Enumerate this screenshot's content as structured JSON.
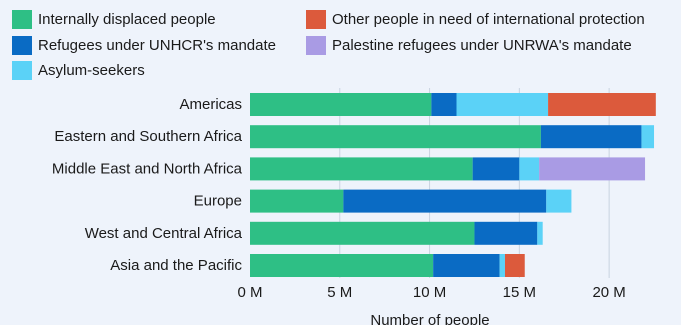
{
  "chart_data": {
    "type": "bar",
    "orientation": "horizontal",
    "stacked": true,
    "title": "",
    "xlabel": "Number of people",
    "ylabel": "",
    "xlim": [
      0,
      23
    ],
    "x_ticks": [
      0,
      5,
      10,
      15,
      20
    ],
    "x_tick_labels": [
      "0 M",
      "5 M",
      "10 M",
      "15 M",
      "20 M"
    ],
    "grid": "vertical",
    "legend_position": "top",
    "categories": [
      "Americas",
      "Eastern and Southern Africa",
      "Middle East and North Africa",
      "Europe",
      "West and Central Africa",
      "Asia and the Pacific"
    ],
    "series": [
      {
        "name": "Internally displaced people",
        "color": "#2ebf85",
        "values": [
          10.1,
          16.2,
          12.4,
          5.2,
          12.5,
          10.2
        ]
      },
      {
        "name": "Refugees under UNHCR's mandate",
        "color": "#0a6bc4",
        "values": [
          1.4,
          5.6,
          2.6,
          11.3,
          3.5,
          3.7
        ]
      },
      {
        "name": "Asylum-seekers",
        "color": "#5bd2f7",
        "values": [
          5.1,
          0.7,
          1.1,
          1.4,
          0.3,
          0.3
        ]
      },
      {
        "name": "Other people in need of international protection",
        "color": "#dc5a3c",
        "values": [
          6.0,
          0,
          0,
          0,
          0,
          1.1
        ]
      },
      {
        "name": "Palestine refugees under UNRWA's mandate",
        "color": "#a99be4",
        "values": [
          0,
          0,
          5.9,
          0,
          0,
          0
        ]
      }
    ]
  }
}
